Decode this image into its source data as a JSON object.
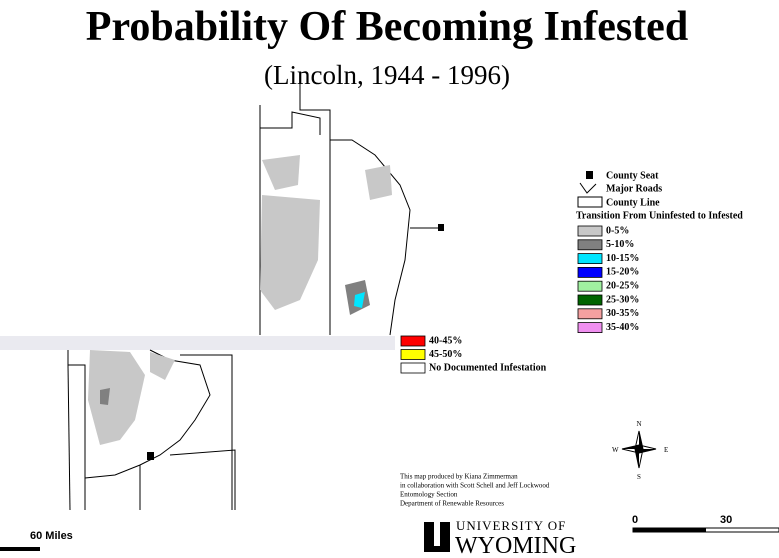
{
  "header": {
    "title": "Probability Of Becoming Infested",
    "subtitle": "(Lincoln, 1944 - 1996)"
  },
  "legend": {
    "symbols": [
      "County Seat",
      "Major Roads",
      "County Line"
    ],
    "heading": "Transition From Uninfested to Infested",
    "classes_upper": [
      {
        "label": "0-5%",
        "color": "#c8c8c8"
      },
      {
        "label": "5-10%",
        "color": "#808080"
      },
      {
        "label": "10-15%",
        "color": "#00e5ff"
      },
      {
        "label": "15-20%",
        "color": "#0000ff"
      },
      {
        "label": "20-25%",
        "color": "#a0f0a0"
      },
      {
        "label": "25-30%",
        "color": "#006400"
      },
      {
        "label": "30-35%",
        "color": "#f4a0a0"
      },
      {
        "label": "35-40%",
        "color": "#f090f0"
      }
    ],
    "classes_lower": [
      {
        "label": "40-45%",
        "color": "#ff0000"
      },
      {
        "label": "45-50%",
        "color": "#ffff00"
      },
      {
        "label": "No Documented Infestation",
        "color": "#ffffff"
      }
    ]
  },
  "credits": [
    "This map produced by Kiana Zimmerman",
    "in collaboration with Scott Schell and Jeff Lockwood",
    "Entomology Section",
    "Department of Renewable Resources"
  ],
  "compass": {
    "north": "N",
    "south": "S",
    "east": "E",
    "west": "W"
  },
  "scale": {
    "start": "0",
    "middle": "30",
    "end": "60 Miles"
  },
  "logo": {
    "line1": "UNIVERSITY OF",
    "line2": "WYOMING"
  }
}
